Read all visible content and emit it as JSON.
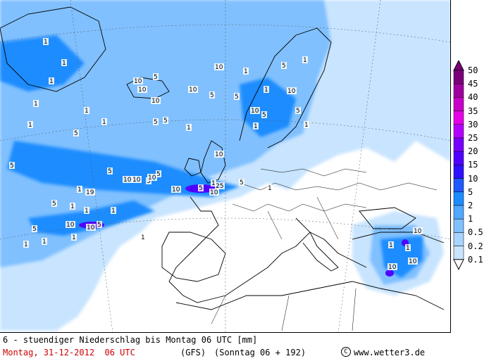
{
  "footer": {
    "title": "6 - stuendiger Niederschlag bis Montag 06 UTC [mm]",
    "date": "Montag, 31-12-2012  06 UTC",
    "model": "(GFS)",
    "run": "(Sonntag 06 + 192)",
    "copyright_symbol": "C",
    "site": "www.wetter3.de",
    "date_color": "#cc0000"
  },
  "legend": {
    "levels": [
      "50",
      "45",
      "40",
      "35",
      "30",
      "25",
      "20",
      "15",
      "10",
      "5",
      "2",
      "1",
      "0.5",
      "0.2",
      "0.1"
    ],
    "colors": [
      "#7a007a",
      "#a000a0",
      "#c800c8",
      "#e600e6",
      "#b400ff",
      "#7800ff",
      "#5000ff",
      "#2e10ff",
      "#1e5aff",
      "#1e8cff",
      "#50a8ff",
      "#80c0ff",
      "#a8d4ff",
      "#c8e4ff",
      "#e6f2ff"
    ]
  },
  "map": {
    "land_color": "#ffffff",
    "sea_color": "#ffffff",
    "precip_light": "#c8e4ff",
    "precip_mid": "#80c0ff",
    "precip_heavy": "#1e8cff",
    "precip_extreme": "#5000ff",
    "contour_labels": [
      "1",
      "1",
      "1",
      "1",
      "1",
      "1",
      "1",
      "5",
      "10",
      "5",
      "10",
      "10",
      "5",
      "5",
      "10",
      "1",
      "5",
      "1",
      "10",
      "5",
      "1",
      "5",
      "1",
      "10",
      "1",
      "5",
      "10",
      "10",
      "5",
      "1",
      "5",
      "10",
      "5",
      "1",
      "5",
      "10",
      "5",
      "1",
      "25",
      "10",
      "5",
      "1",
      "5",
      "1",
      "1",
      "1",
      "5",
      "1",
      "5",
      "10",
      "10",
      "5",
      "1",
      "19",
      "10",
      "10",
      "1",
      "1",
      "10",
      "10",
      "10",
      "1",
      "1"
    ]
  }
}
